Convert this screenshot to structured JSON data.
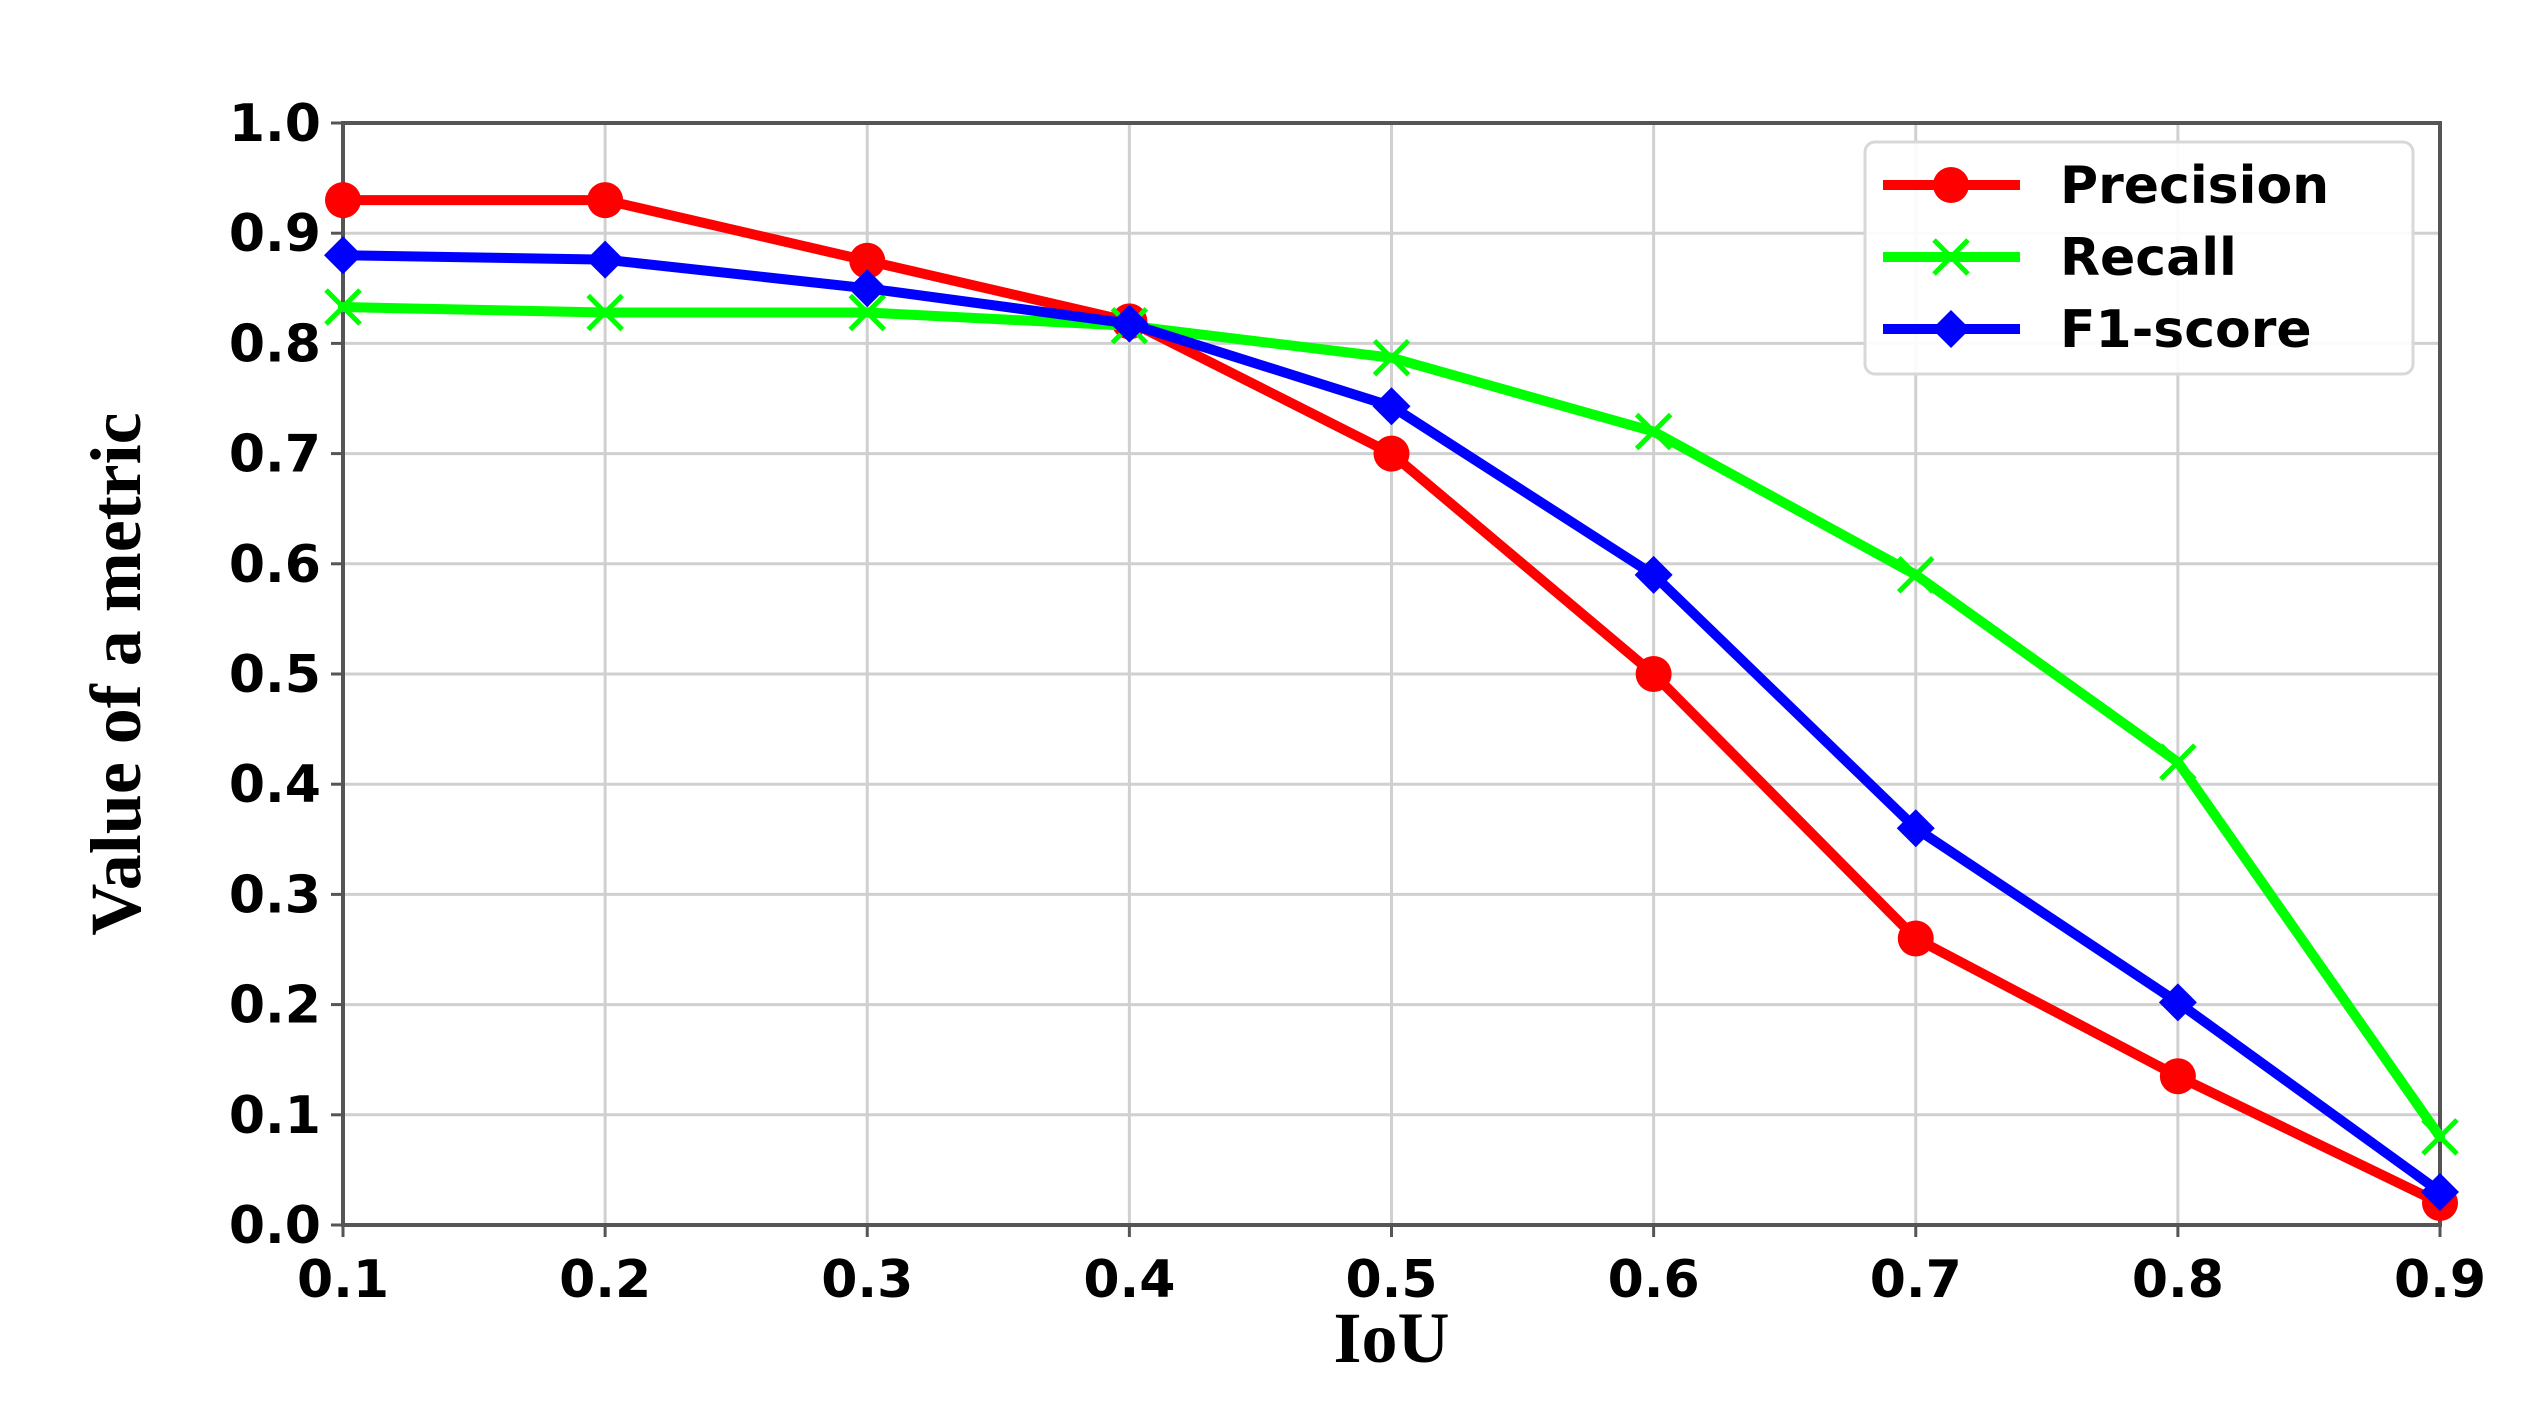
{
  "chart_data": {
    "type": "line",
    "title": "",
    "xlabel": "IoU",
    "ylabel": "Value of a metric",
    "xlim": [
      0.1,
      0.9
    ],
    "ylim": [
      0.0,
      1.0
    ],
    "x": [
      0.1,
      0.2,
      0.3,
      0.4,
      0.5,
      0.6,
      0.7,
      0.8,
      0.9
    ],
    "x_tick_labels": [
      "0.1",
      "0.2",
      "0.3",
      "0.4",
      "0.5",
      "0.6",
      "0.7",
      "0.8",
      "0.9"
    ],
    "y_ticks": [
      0.0,
      0.1,
      0.2,
      0.3,
      0.4,
      0.5,
      0.6,
      0.7,
      0.8,
      0.9,
      1.0
    ],
    "y_tick_labels": [
      "0.0",
      "0.1",
      "0.2",
      "0.3",
      "0.4",
      "0.5",
      "0.6",
      "0.7",
      "0.8",
      "0.9",
      "1.0"
    ],
    "grid": true,
    "legend_position": "top-right",
    "series": [
      {
        "name": "Precision",
        "color": "#ff0000",
        "marker": "circle",
        "values": [
          0.93,
          0.93,
          0.875,
          0.82,
          0.7,
          0.5,
          0.26,
          0.135,
          0.02
        ]
      },
      {
        "name": "Recall",
        "color": "#00ff00",
        "marker": "x",
        "values": [
          0.833,
          0.828,
          0.828,
          0.816,
          0.787,
          0.72,
          0.59,
          0.42,
          0.08
        ]
      },
      {
        "name": "F1-score",
        "color": "#0000ff",
        "marker": "diamond",
        "values": [
          0.88,
          0.876,
          0.85,
          0.818,
          0.743,
          0.59,
          0.36,
          0.202,
          0.03
        ]
      }
    ]
  }
}
